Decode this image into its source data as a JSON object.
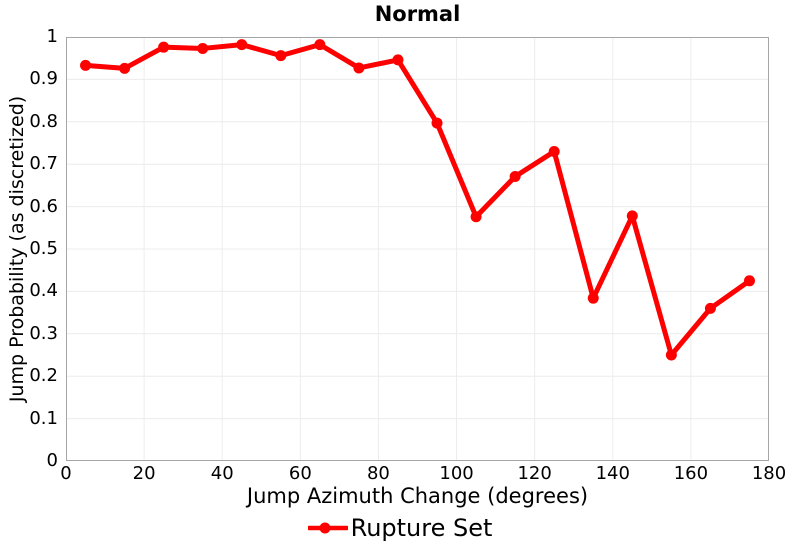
{
  "title": "Normal",
  "colors": {
    "series": "#ff0000",
    "grid": "#ececec",
    "plot_border": "#a6a6a6",
    "text": "#000000",
    "background": "#ffffff"
  },
  "legend": {
    "label": "Rupture Set"
  },
  "chart_data": {
    "type": "line",
    "title": "Normal",
    "xlabel": "Jump Azimuth Change (degrees)",
    "ylabel": "Jump Probability (as discretized)",
    "xlim": [
      0,
      180
    ],
    "ylim": [
      0,
      1
    ],
    "x_ticks": [
      0,
      20,
      40,
      60,
      80,
      100,
      120,
      140,
      160,
      180
    ],
    "y_ticks": [
      0,
      0.1,
      0.2,
      0.3,
      0.4,
      0.5,
      0.6,
      0.7,
      0.8,
      0.9,
      1
    ],
    "grid": true,
    "legend_position": "bottom",
    "series": [
      {
        "name": "Rupture Set",
        "color": "#ff0000",
        "marker": "circle",
        "x": [
          5,
          15,
          25,
          35,
          45,
          55,
          65,
          75,
          85,
          95,
          105,
          115,
          125,
          135,
          145,
          155,
          165,
          175
        ],
        "y": [
          0.933,
          0.926,
          0.976,
          0.973,
          0.982,
          0.956,
          0.982,
          0.927,
          0.946,
          0.797,
          0.576,
          0.671,
          0.73,
          0.384,
          0.578,
          0.25,
          0.36,
          0.425
        ]
      }
    ]
  }
}
